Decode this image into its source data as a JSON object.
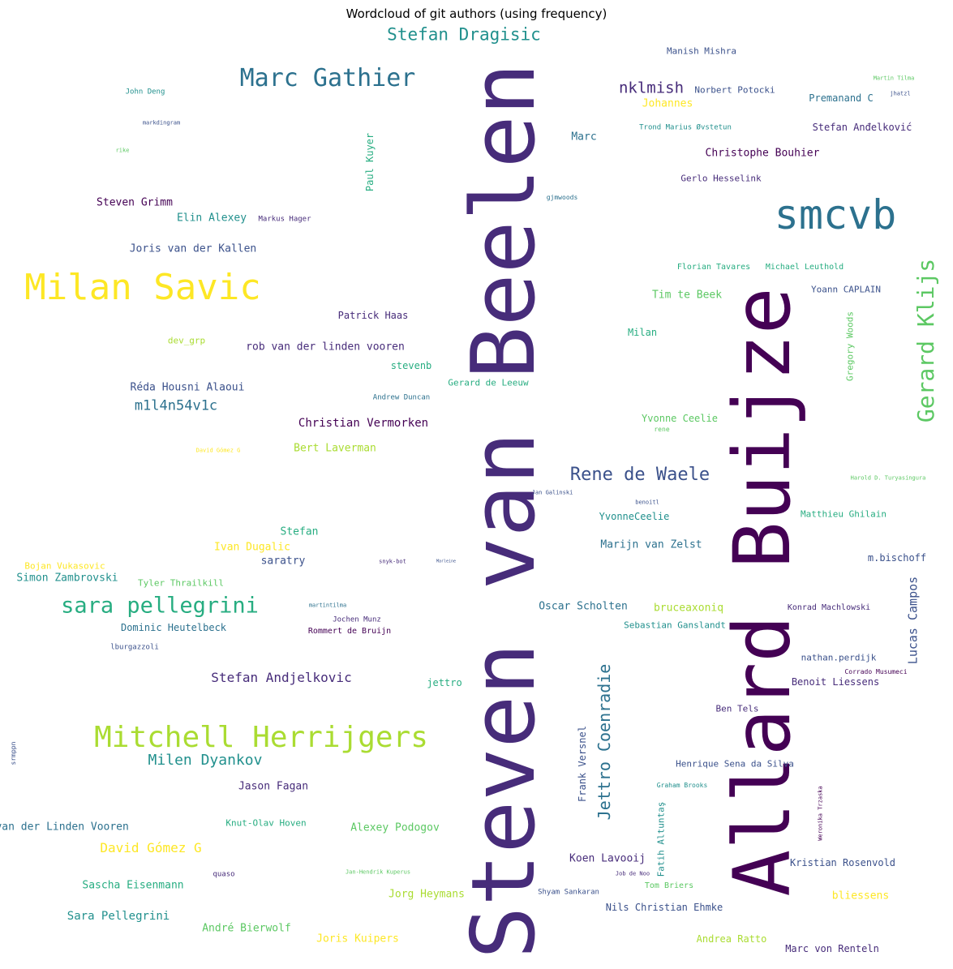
{
  "title": "Wordcloud of git authors (using frequency)",
  "palette": [
    "#440154",
    "#472c7a",
    "#3b518b",
    "#2c718e",
    "#21908d",
    "#27ad81",
    "#5cc863",
    "#aadc32",
    "#fde725"
  ],
  "words": [
    {
      "text": "Steven van Beelen",
      "c": "#472c7a"
    },
    {
      "text": "Allard Buijze",
      "c": "#440154"
    },
    {
      "text": "smcvb",
      "c": "#2c718e"
    },
    {
      "text": "Milan Savic",
      "c": "#fde725"
    },
    {
      "text": "Mitchell Herrijgers",
      "c": "#aadc32"
    },
    {
      "text": "Marc Gathier",
      "c": "#2c718e"
    },
    {
      "text": "Gerard Klijs",
      "c": "#5cc863"
    },
    {
      "text": "Stefan Dragisic",
      "c": "#21908d"
    },
    {
      "text": "sara pellegrini",
      "c": "#27ad81"
    },
    {
      "text": "Rene de Waele",
      "c": "#3b518b"
    },
    {
      "text": "Jettro Coenradie",
      "c": "#2c718e"
    },
    {
      "text": "nklmish",
      "c": "#472c7a"
    },
    {
      "text": "Milen Dyankov",
      "c": "#21908d"
    },
    {
      "text": "m1l4n54v1c",
      "c": "#2c718e"
    },
    {
      "text": "David Gómez G",
      "c": "#fde725"
    },
    {
      "text": "Lucas Campos",
      "c": "#3b518b"
    },
    {
      "text": "Stefan Andjelkovic",
      "c": "#472c7a"
    },
    {
      "text": "Christian Vermorken",
      "c": "#440154"
    },
    {
      "text": "Sara Pellegrini",
      "c": "#21908d"
    },
    {
      "text": "Frank Versnel",
      "c": "#3b518b"
    },
    {
      "text": "Manish Mishra",
      "c": "#3b518b"
    },
    {
      "text": "John Deng",
      "c": "#21908d"
    },
    {
      "text": "Paul Kuyer",
      "c": "#27ad81"
    },
    {
      "text": "Johannes",
      "c": "#fde725"
    },
    {
      "text": "Norbert Potocki",
      "c": "#3b518b"
    },
    {
      "text": "Premanand C",
      "c": "#2c718e"
    },
    {
      "text": "Martin Tilma",
      "c": "#5cc863"
    },
    {
      "text": "jhatzl",
      "c": "#3b518b"
    },
    {
      "text": "markdingram",
      "c": "#3b518b"
    },
    {
      "text": "Marc",
      "c": "#2c718e"
    },
    {
      "text": "Trond Marius Øvstetun",
      "c": "#21908d"
    },
    {
      "text": "Stefan Anđelković",
      "c": "#472c7a"
    },
    {
      "text": "rike",
      "c": "#5cc863"
    },
    {
      "text": "Christophe Bouhier",
      "c": "#440154"
    },
    {
      "text": "Gerlo Hesselink",
      "c": "#472c7a"
    },
    {
      "text": "gjmwoods",
      "c": "#2c718e"
    },
    {
      "text": "Steven Grimm",
      "c": "#440154"
    },
    {
      "text": "Elin Alexey",
      "c": "#21908d"
    },
    {
      "text": "Markus Hager",
      "c": "#472c7a"
    },
    {
      "text": "Joris van der Kallen",
      "c": "#3b518b"
    },
    {
      "text": "Florian Tavares",
      "c": "#27ad81"
    },
    {
      "text": "Michael Leuthold",
      "c": "#27ad81"
    },
    {
      "text": "Yoann CAPLAIN",
      "c": "#3b518b"
    },
    {
      "text": "Tim te Beek",
      "c": "#5cc863"
    },
    {
      "text": "Patrick Haas",
      "c": "#472c7a"
    },
    {
      "text": "Gregory Woods",
      "c": "#5cc863"
    },
    {
      "text": "Milan",
      "c": "#27ad81"
    },
    {
      "text": "dev_grp",
      "c": "#aadc32"
    },
    {
      "text": "rob van der linden vooren",
      "c": "#472c7a"
    },
    {
      "text": "stevenb",
      "c": "#27ad81"
    },
    {
      "text": "Réda Housni Alaoui",
      "c": "#3b518b"
    },
    {
      "text": "Gerard de Leeuw",
      "c": "#27ad81"
    },
    {
      "text": "Andrew Duncan",
      "c": "#2c718e"
    },
    {
      "text": "Yvonne Ceelie",
      "c": "#5cc863"
    },
    {
      "text": "rene",
      "c": "#5cc863"
    },
    {
      "text": "Bert Laverman",
      "c": "#aadc32"
    },
    {
      "text": "David Gómez G",
      "c": "#fde725"
    },
    {
      "text": "Harold D. Turyasingura",
      "c": "#5cc863"
    },
    {
      "text": "Jan Galinski",
      "c": "#3b518b"
    },
    {
      "text": "benoitl",
      "c": "#3b518b"
    },
    {
      "text": "YvonneCeelie",
      "c": "#21908d"
    },
    {
      "text": "Matthieu Ghilain",
      "c": "#27ad81"
    },
    {
      "text": "Stefan",
      "c": "#27ad81"
    },
    {
      "text": "Ivan Dugalic",
      "c": "#fde725"
    },
    {
      "text": "Marijn van Zelst",
      "c": "#2c718e"
    },
    {
      "text": "m.bischoff",
      "c": "#3b518b"
    },
    {
      "text": "saratry",
      "c": "#3b518b"
    },
    {
      "text": "snyk-bot",
      "c": "#472c7a"
    },
    {
      "text": "Marleine",
      "c": "#3b518b"
    },
    {
      "text": "Bojan Vukasovic",
      "c": "#fde725"
    },
    {
      "text": "Simon Zambrovski",
      "c": "#21908d"
    },
    {
      "text": "Tyler Thrailkill",
      "c": "#5cc863"
    },
    {
      "text": "Oscar Scholten",
      "c": "#2c718e"
    },
    {
      "text": "bruceaxoniq",
      "c": "#aadc32"
    },
    {
      "text": "Konrad Machlowski",
      "c": "#472c7a"
    },
    {
      "text": "martintilma",
      "c": "#2c718e"
    },
    {
      "text": "Jochen Munz",
      "c": "#472c7a"
    },
    {
      "text": "Dominic Heutelbeck",
      "c": "#2c718e"
    },
    {
      "text": "Rommert de Bruijn",
      "c": "#440154"
    },
    {
      "text": "Sebastian Ganslandt",
      "c": "#21908d"
    },
    {
      "text": "lburgazzoli",
      "c": "#3b518b"
    },
    {
      "text": "nathan.perdijk",
      "c": "#3b518b"
    },
    {
      "text": "Corrado Musumeci",
      "c": "#440154"
    },
    {
      "text": "jettro",
      "c": "#27ad81"
    },
    {
      "text": "Benoit Liessens",
      "c": "#472c7a"
    },
    {
      "text": "Ben Tels",
      "c": "#472c7a"
    },
    {
      "text": "Henrique Sena da Silva",
      "c": "#3b518b"
    },
    {
      "text": "Jason Fagan",
      "c": "#472c7a"
    },
    {
      "text": "srmppn",
      "c": "#3b518b"
    },
    {
      "text": "Rob van der Linden Vooren",
      "c": "#2c718e"
    },
    {
      "text": "Knut-Olav Hoven",
      "c": "#27ad81"
    },
    {
      "text": "Alexey Podogov",
      "c": "#5cc863"
    },
    {
      "text": "Fatih Altuntaş",
      "c": "#21908d"
    },
    {
      "text": "Graham Brooks",
      "c": "#21908d"
    },
    {
      "text": "Weronika Trzaska",
      "c": "#440154"
    },
    {
      "text": "Koen Lavooij",
      "c": "#472c7a"
    },
    {
      "text": "Kristian Rosenvold",
      "c": "#3b518b"
    },
    {
      "text": "Sascha Eisenmann",
      "c": "#27ad81"
    },
    {
      "text": "quaso",
      "c": "#472c7a"
    },
    {
      "text": "Jan-Hendrik Kuperus",
      "c": "#5cc863"
    },
    {
      "text": "Job de Noo",
      "c": "#472c7a"
    },
    {
      "text": "Tom Briers",
      "c": "#5cc863"
    },
    {
      "text": "Jorg Heymans",
      "c": "#aadc32"
    },
    {
      "text": "Shyam Sankaran",
      "c": "#3b518b"
    },
    {
      "text": "bliessens",
      "c": "#fde725"
    },
    {
      "text": "Nils Christian Ehmke",
      "c": "#3b518b"
    },
    {
      "text": "André Bierwolf",
      "c": "#5cc863"
    },
    {
      "text": "Joris Kuipers",
      "c": "#fde725"
    },
    {
      "text": "Andrea Ratto",
      "c": "#aadc32"
    },
    {
      "text": "Marc von Renteln",
      "c": "#472c7a"
    }
  ]
}
